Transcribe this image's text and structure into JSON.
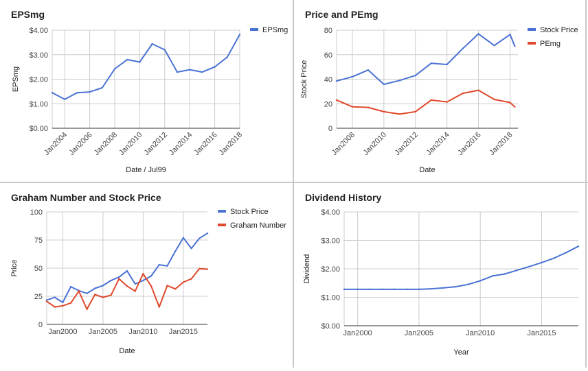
{
  "colors": {
    "blue": "#4a72d4",
    "red": "#e0492c",
    "grid": "#cccccc",
    "baseline": "#333333"
  },
  "chart_data": [
    {
      "type": "line",
      "title": "EPSmg",
      "xlabel": "Date / Jul99",
      "ylabel": "EPSmg",
      "x_ticks": [
        "Jan2004",
        "Jan2006",
        "Jan2008",
        "Jan2010",
        "Jan2012",
        "Jan2014",
        "Jan2016",
        "Jan2018"
      ],
      "y_ticks": [
        "$0.00",
        "$1.00",
        "$2.00",
        "$3.00",
        "$4.00"
      ],
      "xlim": [
        2003,
        2018
      ],
      "ylim": [
        0,
        4
      ],
      "legend_position": "top-right",
      "series": [
        {
          "name": "EPSmg",
          "color": "#4a72d4",
          "x": [
            2003,
            2004,
            2005,
            2006,
            2007,
            2008,
            2009,
            2010,
            2011,
            2012,
            2013,
            2014,
            2015,
            2016,
            2017,
            2018
          ],
          "values": [
            1.45,
            1.18,
            1.45,
            1.48,
            1.65,
            2.42,
            2.8,
            2.7,
            3.44,
            3.2,
            2.29,
            2.39,
            2.29,
            2.5,
            2.9,
            3.82
          ]
        }
      ]
    },
    {
      "type": "line",
      "title": "Price and PEmg",
      "xlabel": "Date",
      "ylabel": "Stock Price",
      "x_ticks": [
        "Jan2008",
        "Jan2010",
        "Jan2012",
        "Jan2014",
        "Jan2016",
        "Jan2018"
      ],
      "y_ticks": [
        "0",
        "20",
        "40",
        "60",
        "80"
      ],
      "xlim": [
        2007,
        2018.5
      ],
      "ylim": [
        0,
        80
      ],
      "legend_position": "top-right",
      "series": [
        {
          "name": "Stock Price",
          "color": "#4a72d4",
          "x": [
            2007,
            2008,
            2009,
            2010,
            2011,
            2012,
            2013,
            2014,
            2015,
            2016,
            2017,
            2018,
            2018.3
          ],
          "values": [
            38.5,
            42,
            47.5,
            35.8,
            39,
            43,
            53,
            52,
            65,
            77,
            67.5,
            76.5,
            67
          ]
        },
        {
          "name": "PEmg",
          "color": "#e0492c",
          "x": [
            2007,
            2008,
            2009,
            2010,
            2011,
            2012,
            2013,
            2014,
            2015,
            2016,
            2017,
            2018,
            2018.3
          ],
          "values": [
            23,
            17.5,
            17,
            13.5,
            11.5,
            13.5,
            23,
            21.5,
            28.5,
            31,
            23.5,
            21,
            17.5
          ]
        }
      ]
    },
    {
      "type": "line",
      "title": "Graham Number and Stock Price",
      "xlabel": "Date",
      "ylabel": "Price",
      "x_ticks": [
        "Jan2000",
        "Jan2005",
        "Jan2010",
        "Jan2015"
      ],
      "y_ticks": [
        "0",
        "25",
        "50",
        "75",
        "100"
      ],
      "xlim": [
        1998,
        2018
      ],
      "ylim": [
        0,
        100
      ],
      "legend_position": "top-right",
      "series": [
        {
          "name": "Stock Price",
          "color": "#4a72d4",
          "x": [
            1998,
            1999,
            2000,
            2001,
            2002,
            2003,
            2004,
            2005,
            2006,
            2007,
            2008,
            2009,
            2010,
            2011,
            2012,
            2013,
            2014,
            2015,
            2016,
            2017,
            2018
          ],
          "values": [
            21.5,
            24,
            19.5,
            33.5,
            30,
            27.5,
            32,
            34.5,
            39,
            42,
            47.5,
            36,
            39,
            43,
            53,
            52,
            65,
            77,
            67.5,
            76.5,
            81
          ]
        },
        {
          "name": "Graham Number",
          "color": "#e0492c",
          "x": [
            1998,
            1999,
            2000,
            2001,
            2002,
            2003,
            2004,
            2005,
            2006,
            2007,
            2008,
            2009,
            2010,
            2011,
            2012,
            2013,
            2014,
            2015,
            2016,
            2017,
            2018
          ],
          "values": [
            20.5,
            15.5,
            16.5,
            19,
            29.5,
            13.5,
            26.5,
            24,
            26,
            40.5,
            34,
            29.5,
            45,
            34,
            15.5,
            34.5,
            31.5,
            37.5,
            40.5,
            49.5,
            49
          ]
        }
      ]
    },
    {
      "type": "line",
      "title": "Dividend History",
      "xlabel": "Year",
      "ylabel": "Dividend",
      "x_ticks": [
        "Jan2000",
        "Jan2005",
        "Jan2010",
        "Jan2015"
      ],
      "y_ticks": [
        "$0.00",
        "$1.00",
        "$2.00",
        "$3.00",
        "$4.00"
      ],
      "xlim": [
        1998.9,
        2018
      ],
      "ylim": [
        0,
        4
      ],
      "series": [
        {
          "name": "Dividend",
          "color": "#4a72d4",
          "x": [
            1998.9,
            2000,
            2001,
            2002,
            2003,
            2004,
            2005,
            2006,
            2007,
            2008,
            2009,
            2010,
            2011,
            2012,
            2013,
            2014,
            2015,
            2016,
            2017,
            2018
          ],
          "values": [
            1.28,
            1.28,
            1.28,
            1.28,
            1.28,
            1.28,
            1.28,
            1.3,
            1.33,
            1.37,
            1.45,
            1.58,
            1.75,
            1.82,
            1.95,
            2.08,
            2.22,
            2.37,
            2.57,
            2.79
          ]
        }
      ]
    }
  ]
}
